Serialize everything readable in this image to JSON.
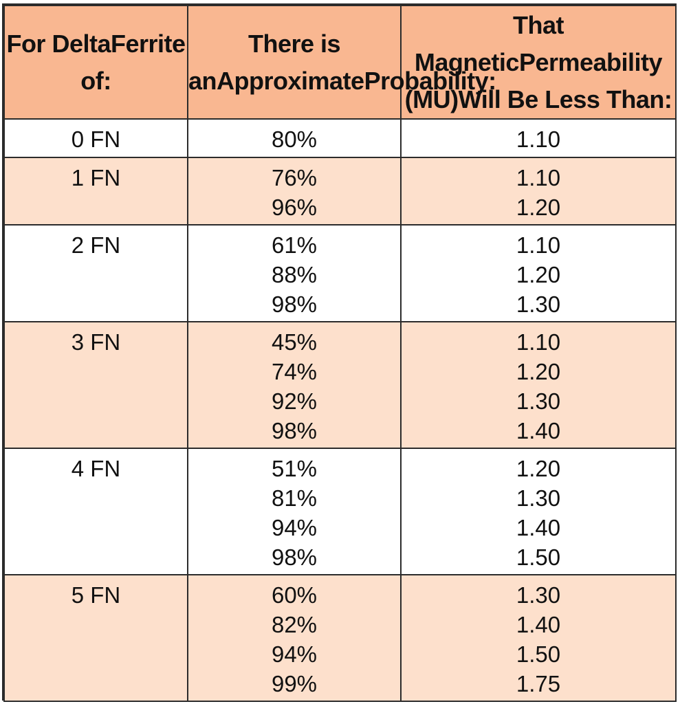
{
  "headers": [
    "For Delta\nFerrite of:",
    "There is an\nApproximate\nProbability:",
    "That Magnetic\nPermeability (MU)\nWill Be Less Than:"
  ],
  "rows": [
    {
      "ferrite": "0 FN",
      "probabilities": [
        "80%"
      ],
      "permeabilities": [
        "1.10"
      ]
    },
    {
      "ferrite": "1 FN",
      "probabilities": [
        "76%",
        "96%"
      ],
      "permeabilities": [
        "1.10",
        "1.20"
      ]
    },
    {
      "ferrite": "2 FN",
      "probabilities": [
        "61%",
        "88%",
        "98%"
      ],
      "permeabilities": [
        "1.10",
        "1.20",
        "1.30"
      ]
    },
    {
      "ferrite": "3 FN",
      "probabilities": [
        "45%",
        "74%",
        "92%",
        "98%"
      ],
      "permeabilities": [
        "1.10",
        "1.20",
        "1.30",
        "1.40"
      ]
    },
    {
      "ferrite": "4 FN",
      "probabilities": [
        "51%",
        "81%",
        "94%",
        "98%"
      ],
      "permeabilities": [
        "1.20",
        "1.30",
        "1.40",
        "1.50"
      ]
    },
    {
      "ferrite": "5 FN",
      "probabilities": [
        "60%",
        "82%",
        "94%",
        "99%"
      ],
      "permeabilities": [
        "1.30",
        "1.40",
        "1.50",
        "1.75"
      ]
    }
  ],
  "colors": {
    "header_bg": "#f9b791",
    "shaded_row_bg": "#fde0cc",
    "plain_row_bg": "#ffffff",
    "border": "#2b2b2b"
  }
}
